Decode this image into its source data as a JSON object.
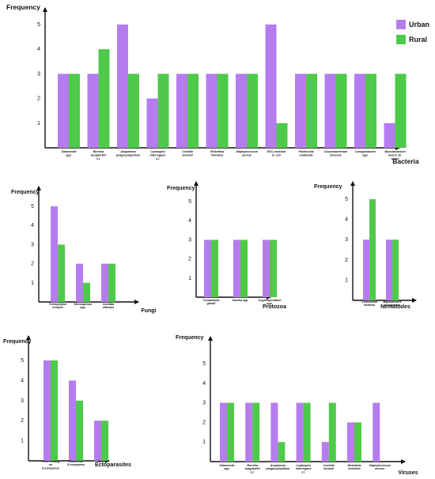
{
  "legend": [
    {
      "label": "Urban",
      "color": "#b57cf0"
    },
    {
      "label": "Rural",
      "color": "#4fc94a"
    }
  ],
  "chart_data": [
    {
      "type": "bar",
      "ylabel": "Frequency",
      "xlabel": "Bacteria",
      "ylim": [
        0,
        5
      ],
      "yticks": [
        1,
        2,
        3,
        4,
        5
      ],
      "categories": [
        "Salmonella spp.",
        "Borrelia burgdorferi s.l.",
        "Anaplasma phagocytophilum",
        "Leptospira interrogans s.l.",
        "Coxiella burnetii",
        "Rickettsia helvetica",
        "Staphylococcus aureus",
        "ESC-resistant E. coli",
        "Pasteurella multocida",
        "Corynebacterium ulcerans",
        "Campylobacter spp.",
        "Mycobacterium avium, M. bovis"
      ],
      "series": [
        {
          "name": "Urban",
          "values": [
            3,
            3,
            5,
            2,
            3,
            3,
            3,
            5,
            3,
            3,
            3,
            1
          ]
        },
        {
          "name": "Rural",
          "values": [
            3,
            4,
            3,
            3,
            3,
            3,
            3,
            1,
            3,
            3,
            3,
            3
          ]
        }
      ]
    },
    {
      "type": "bar",
      "ylabel": "Frequency",
      "xlabel": "Fungi",
      "ylim": [
        0,
        5
      ],
      "yticks": [
        1,
        2,
        3,
        4,
        5
      ],
      "categories": [
        "Trichophyton erinacei",
        "Microsporum spp.",
        "Candida albicans"
      ],
      "series": [
        {
          "name": "Urban",
          "values": [
            5,
            2,
            2
          ]
        },
        {
          "name": "Rural",
          "values": [
            3,
            1,
            2
          ]
        }
      ]
    },
    {
      "type": "bar",
      "ylabel": "Frequency",
      "xlabel": "Protozoa",
      "ylim": [
        0,
        5
      ],
      "yticks": [
        1,
        2,
        3,
        4,
        5
      ],
      "categories": [
        "Toxoplasma gondii",
        "Giardia spp.",
        "Cryptosporidium spp."
      ],
      "series": [
        {
          "name": "Urban",
          "values": [
            3,
            3,
            3
          ]
        },
        {
          "name": "Rural",
          "values": [
            3,
            3,
            3
          ]
        }
      ]
    },
    {
      "type": "bar",
      "ylabel": "Frequency",
      "xlabel": "Nematodes",
      "ylim": [
        0,
        5
      ],
      "yticks": [
        1,
        2,
        3,
        4,
        5
      ],
      "categories": [
        "Crenosoma striatum",
        "Baylisascaris semiplaskia"
      ],
      "series": [
        {
          "name": "Urban",
          "values": [
            3,
            3
          ]
        },
        {
          "name": "Rural",
          "values": [
            5,
            3
          ]
        }
      ]
    },
    {
      "type": "bar",
      "ylabel": "Frequency",
      "xlabel": "Ectoparasites",
      "ylim": [
        0,
        5
      ],
      "yticks": [
        1,
        2,
        3,
        4,
        5
      ],
      "categories": [
        "Ticks feeding on E.europaeus",
        "Fleas from E.europaeus",
        "Mites"
      ],
      "series": [
        {
          "name": "Urban",
          "values": [
            5,
            4,
            2
          ]
        },
        {
          "name": "Rural",
          "values": [
            5,
            3,
            2
          ]
        }
      ]
    },
    {
      "type": "bar",
      "ylabel": "Frequency",
      "xlabel": "Viruses",
      "ylim": [
        0,
        5
      ],
      "yticks": [
        1,
        2,
        3,
        4,
        5
      ],
      "categories": [
        "Salmonella spp.",
        "Borrelia burgdorferi s.l.",
        "Anaplasma phagocytophilum",
        "Leptospira interrogans s.l.",
        "Coxiella burnetii",
        "Rickettsia helvetica",
        "Staphylococcus aureus"
      ],
      "series": [
        {
          "name": "Urban",
          "values": [
            3,
            3,
            3,
            3,
            1,
            2,
            3
          ]
        },
        {
          "name": "Rural",
          "values": [
            3,
            3,
            1,
            3,
            3,
            2,
            0
          ]
        }
      ]
    }
  ]
}
